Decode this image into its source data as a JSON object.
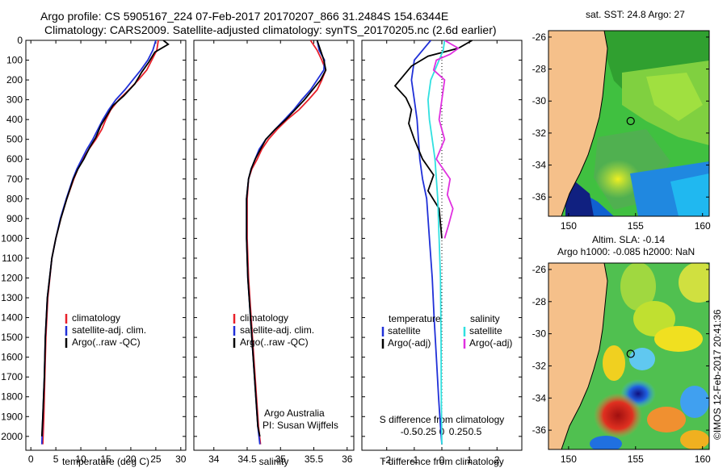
{
  "figure": {
    "title_line1": "Argo profile: CS 5905167_224 07-Feb-2017 20170207_866 31.2484S 154.6344E",
    "title_line2": "Climatology: CARS2009. Satellite-adjusted climatology: synTS_20170205.nc (2.6d earlier)",
    "credit": "Argo Australia",
    "pi": "PI: Susan Wijffels",
    "watermark": "©IMOS 12-Feb-2017 20:41:36"
  },
  "colors": {
    "climatology": "#e8202a",
    "satellite": "#2030d8",
    "argo": "#000000",
    "satellite_s": "#30e0e0",
    "argo_s": "#e030e0",
    "land": "#f5c08a"
  },
  "chart_data": [
    {
      "id": "temperature",
      "type": "line",
      "xlabel": "temperature (deg C)",
      "ylabel": "",
      "xlim": [
        -1,
        31
      ],
      "ylim": [
        2070,
        0
      ],
      "xticks": [
        0,
        5,
        10,
        15,
        20,
        25,
        30
      ],
      "yticks": [
        0,
        100,
        200,
        300,
        400,
        500,
        600,
        700,
        800,
        900,
        1000,
        1100,
        1200,
        1300,
        1400,
        1500,
        1600,
        1700,
        1800,
        1900,
        2000
      ],
      "legend": [
        "climatology",
        "satellite-adj. clim.",
        "Argo(..raw -QC)"
      ],
      "series": [
        {
          "name": "climatology",
          "color": "#e8202a",
          "x": [
            25.5,
            25.2,
            24.2,
            23.2,
            21.5,
            19.6,
            17.6,
            16.0,
            15.0,
            14.2,
            13.0,
            11.6,
            10.4,
            9.4,
            8.6,
            7.2,
            6.0,
            5.0,
            4.2,
            3.4,
            3.0,
            2.8,
            2.6,
            2.4
          ],
          "y": [
            0,
            50,
            100,
            150,
            200,
            250,
            300,
            350,
            400,
            450,
            500,
            550,
            600,
            650,
            700,
            800,
            900,
            1000,
            1100,
            1300,
            1500,
            1700,
            1900,
            2040
          ]
        },
        {
          "name": "satellite-adj. clim.",
          "color": "#2030d8",
          "x": [
            25.0,
            24.4,
            23.4,
            22.0,
            20.4,
            18.8,
            17.0,
            15.6,
            14.4,
            13.4,
            12.4,
            11.2,
            10.2,
            9.2,
            8.4,
            7.1,
            5.9,
            5.0,
            4.2,
            3.3,
            2.9,
            2.7,
            2.4,
            2.2
          ],
          "y": [
            0,
            50,
            100,
            150,
            200,
            250,
            300,
            350,
            400,
            450,
            500,
            550,
            600,
            650,
            700,
            800,
            900,
            1000,
            1100,
            1300,
            1500,
            1700,
            1900,
            2040
          ]
        },
        {
          "name": "Argo(..raw -QC)",
          "color": "#000000",
          "x": [
            26.5,
            27.5,
            24.8,
            23.6,
            22.2,
            20.8,
            18.6,
            16.4,
            15.2,
            14.0,
            13.0,
            11.8,
            10.6,
            9.4,
            8.5,
            7.2,
            6.0,
            5.0,
            4.2,
            3.3,
            2.9,
            2.7,
            2.4,
            2.2
          ],
          "y": [
            0,
            20,
            60,
            110,
            160,
            220,
            280,
            330,
            380,
            430,
            490,
            540,
            600,
            650,
            700,
            800,
            900,
            1000,
            1100,
            1300,
            1500,
            1700,
            1900,
            2000
          ]
        }
      ]
    },
    {
      "id": "salinity",
      "type": "line",
      "xlabel": "salinity",
      "ylabel": "",
      "xlim": [
        33.7,
        36.1
      ],
      "ylim": [
        2070,
        0
      ],
      "xticks": [
        34,
        34.5,
        35,
        35.5,
        36
      ],
      "legend": [
        "climatology",
        "satellite-adj. clim.",
        "Argo(..raw -QC)"
      ],
      "series": [
        {
          "name": "climatology",
          "color": "#e8202a",
          "x": [
            35.45,
            35.55,
            35.62,
            35.68,
            35.62,
            35.55,
            35.42,
            35.28,
            35.1,
            34.95,
            34.82,
            34.72,
            34.65,
            34.57,
            34.52,
            34.5,
            34.5,
            34.52,
            34.56,
            34.6,
            34.64,
            34.67,
            34.7
          ],
          "y": [
            0,
            50,
            100,
            150,
            200,
            250,
            300,
            350,
            400,
            450,
            500,
            550,
            600,
            650,
            700,
            800,
            1000,
            1200,
            1400,
            1600,
            1800,
            1950,
            2040
          ]
        },
        {
          "name": "satellite-adj. clim.",
          "color": "#2030d8",
          "x": [
            35.55,
            35.58,
            35.66,
            35.65,
            35.55,
            35.45,
            35.32,
            35.2,
            35.06,
            34.92,
            34.78,
            34.68,
            34.62,
            34.56,
            34.52,
            34.49,
            34.49,
            34.51,
            34.55,
            34.59,
            34.63,
            34.66,
            34.69
          ],
          "y": [
            0,
            50,
            100,
            150,
            200,
            250,
            300,
            350,
            400,
            450,
            500,
            550,
            600,
            650,
            700,
            800,
            1000,
            1200,
            1400,
            1600,
            1800,
            1950,
            2040
          ]
        },
        {
          "name": "Argo(..raw -QC)",
          "color": "#000000",
          "x": [
            35.55,
            35.6,
            35.65,
            35.68,
            35.6,
            35.48,
            35.36,
            35.22,
            35.08,
            34.92,
            34.78,
            34.7,
            34.62,
            34.56,
            34.52,
            34.49,
            34.49,
            34.51,
            34.55,
            34.59,
            34.63,
            34.66,
            34.69
          ],
          "y": [
            0,
            50,
            100,
            150,
            200,
            250,
            300,
            350,
            400,
            450,
            500,
            550,
            600,
            650,
            700,
            800,
            1000,
            1200,
            1400,
            1600,
            1800,
            1950,
            2000
          ]
        }
      ]
    },
    {
      "id": "difference",
      "type": "line",
      "xlabel": "T difference from climatology",
      "xlabel_top": "S difference from climatology",
      "xlim": [
        -2.9,
        2.9
      ],
      "ylim": [
        2070,
        0
      ],
      "xticks": [
        -2,
        -1,
        0,
        1,
        2
      ],
      "xticks_s": [
        "-0.5",
        "-0.25",
        "0",
        "0.25",
        "0.5"
      ],
      "legend_t_title": "temperature",
      "legend_s_title": "salinity",
      "legend": [
        "satellite",
        "Argo(-adj)",
        "satellite",
        "Argo(-adj)"
      ],
      "series": [
        {
          "name": "satellite",
          "color": "#2030d8",
          "x": [
            -0.4,
            -0.7,
            -1.0,
            -1.1,
            -1.0,
            -0.9,
            -0.85,
            -0.8,
            -0.7,
            -0.55,
            -0.45,
            -0.35,
            -0.28,
            -0.2,
            -0.12,
            -0.05,
            0.0
          ],
          "y": [
            0,
            50,
            100,
            200,
            300,
            400,
            500,
            600,
            700,
            800,
            1000,
            1200,
            1400,
            1600,
            1800,
            1950,
            2040
          ]
        },
        {
          "name": "Argo(-adj)",
          "color": "#000000",
          "x": [
            1.1,
            0.6,
            -0.5,
            -1.1,
            -1.4,
            -1.7,
            -1.3,
            -1.1,
            -1.2,
            -1.0,
            -0.7,
            -0.3,
            -0.5,
            -0.1,
            0.0
          ],
          "y": [
            0,
            40,
            80,
            130,
            180,
            230,
            290,
            350,
            420,
            500,
            600,
            680,
            760,
            850,
            1000
          ]
        },
        {
          "name": "satellite",
          "color": "#30e0e0",
          "x": [
            0.1,
            0.05,
            -0.1,
            -0.25,
            -0.4,
            -0.5,
            -0.45,
            -0.35,
            -0.25,
            -0.15,
            -0.1,
            -0.05,
            -0.03,
            -0.02,
            0.0
          ],
          "y": [
            0,
            50,
            100,
            150,
            200,
            300,
            400,
            500,
            600,
            800,
            1000,
            1200,
            1500,
            1800,
            2040
          ]
        },
        {
          "name": "Argo(-adj)",
          "color": "#e030e0",
          "x": [
            0.1,
            0.6,
            0.3,
            -0.2,
            -0.3,
            0.1,
            0.0,
            -0.1,
            0.1,
            -0.2,
            0.3,
            0.2,
            0.4,
            0.25,
            0.1
          ],
          "y": [
            0,
            40,
            70,
            100,
            150,
            200,
            300,
            400,
            500,
            600,
            700,
            780,
            850,
            930,
            1000
          ]
        }
      ]
    }
  ],
  "maps": [
    {
      "id": "sst-map",
      "title": "sat. SST: 24.8  Argo: 27",
      "lon_ticks": [
        150,
        155,
        160
      ],
      "lat_ticks": [
        -26,
        -28,
        -30,
        -32,
        -34,
        -36
      ],
      "lon_range": [
        148.5,
        160.5
      ],
      "lat_range": [
        -37.2,
        -25.6
      ],
      "float_lon": 154.6344,
      "float_lat": -31.2484
    },
    {
      "id": "sla-map",
      "title": "Altim. SLA: -0.14",
      "subtitle": "Argo h1000: -0.085 h2000: NaN",
      "lon_ticks": [
        150,
        155,
        160
      ],
      "lat_ticks": [
        -26,
        -28,
        -30,
        -32,
        -34,
        -36
      ],
      "lon_range": [
        148.5,
        160.5
      ],
      "lat_range": [
        -37.2,
        -25.6
      ],
      "float_lon": 154.6344,
      "float_lat": -31.2484
    }
  ]
}
